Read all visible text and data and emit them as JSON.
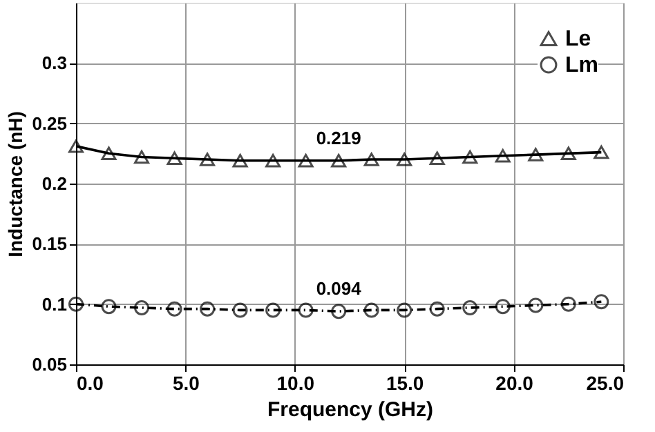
{
  "chart_data": {
    "type": "line",
    "xlabel": "Frequency (GHz)",
    "ylabel": "Inductance (nH)",
    "x": [
      0,
      1.5,
      3,
      4.5,
      6,
      7.5,
      9,
      10.5,
      12,
      13.5,
      15,
      16.5,
      18,
      19.5,
      21,
      22.5,
      24
    ],
    "series": [
      {
        "name": "Le",
        "color": "#000000",
        "marker": "triangle",
        "line_style": "solid",
        "values": [
          0.231,
          0.225,
          0.222,
          0.221,
          0.22,
          0.219,
          0.219,
          0.219,
          0.219,
          0.22,
          0.22,
          0.221,
          0.222,
          0.223,
          0.224,
          0.225,
          0.226
        ]
      },
      {
        "name": "Lm",
        "color": "#000000",
        "marker": "circle",
        "line_style": "dashed",
        "values": [
          0.1,
          0.098,
          0.097,
          0.096,
          0.096,
          0.095,
          0.095,
          0.095,
          0.094,
          0.095,
          0.095,
          0.096,
          0.097,
          0.098,
          0.099,
          0.1,
          0.102
        ]
      }
    ],
    "xlim": [
      0,
      25
    ],
    "xticks": [
      {
        "value": 0,
        "label": "0.0"
      },
      {
        "value": 5,
        "label": "5.0"
      },
      {
        "value": 10,
        "label": "10.0"
      },
      {
        "value": 15,
        "label": "15.0"
      },
      {
        "value": 20,
        "label": "20.0"
      },
      {
        "value": 25,
        "label": "25.0"
      }
    ],
    "ylim": [
      0.05,
      0.35
    ],
    "yticks": [
      0.05,
      0.1,
      0.15,
      0.2,
      0.25,
      0.3
    ],
    "annotations": [
      {
        "text": "0.219",
        "x": 12,
        "y": 0.219
      },
      {
        "text": "0.094",
        "x": 12,
        "y": 0.094
      }
    ],
    "grid": true,
    "legend": "top right"
  }
}
